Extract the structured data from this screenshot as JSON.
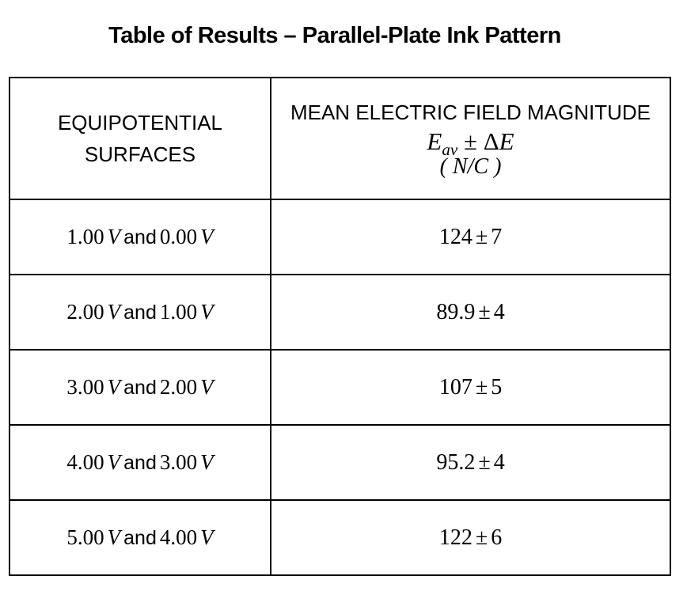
{
  "page": {
    "background_color": "#ffffff",
    "text_color": "#000000",
    "border_color": "#000000"
  },
  "title": "Table of Results – Parallel-Plate Ink Pattern",
  "table": {
    "header": {
      "col1_line1": "EQUIPOTENTIAL",
      "col1_line2": "SURFACES",
      "col2_line1": "MEAN ELECTRIC FIELD MAGNITUDE",
      "formula": {
        "E": "E",
        "sub": "av",
        "pm": "±",
        "delta": "Δ",
        "E2": "E"
      },
      "units": "( N/C )"
    },
    "rows": [
      {
        "v1": "1.00",
        "unit1": "V",
        "conj": "and",
        "v2": "0.00",
        "unit2": "V",
        "mean": "124",
        "pm": "±",
        "err": "7"
      },
      {
        "v1": "2.00",
        "unit1": "V",
        "conj": "and",
        "v2": "1.00",
        "unit2": "V",
        "mean": "89.9",
        "pm": "±",
        "err": "4"
      },
      {
        "v1": "3.00",
        "unit1": "V",
        "conj": "and",
        "v2": "2.00",
        "unit2": "V",
        "mean": "107",
        "pm": "±",
        "err": "5"
      },
      {
        "v1": "4.00",
        "unit1": "V",
        "conj": "and",
        "v2": "3.00",
        "unit2": "V",
        "mean": "95.2",
        "pm": "±",
        "err": "4"
      },
      {
        "v1": "5.00",
        "unit1": "V",
        "conj": "and",
        "v2": "4.00",
        "unit2": "V",
        "mean": "122",
        "pm": "±",
        "err": "6"
      }
    ]
  }
}
